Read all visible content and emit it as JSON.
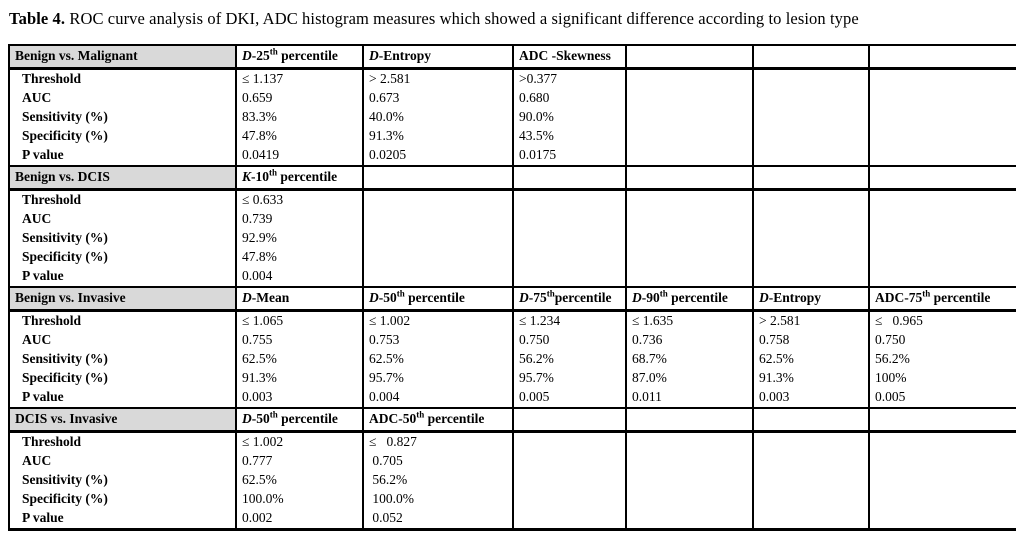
{
  "caption": {
    "bold": "Table 4.",
    "rest": " ROC curve analysis of DKI, ADC histogram measures which showed a significant difference according to lesion type"
  },
  "colors": {
    "section_label_fill": "#d9d9d9",
    "border": "#000000",
    "background": "#ffffff"
  },
  "row_labels": [
    "Threshold",
    "AUC",
    "Sensitivity (%)",
    "Specificity (%)",
    "P value"
  ],
  "sections": [
    {
      "name": "Benign vs. Malignant",
      "columns": [
        {
          "var": "D",
          "pre": "-25",
          "sup": "th",
          "tail": " percentile"
        },
        {
          "var": "D",
          "pre": "-Entropy",
          "sup": "",
          "tail": ""
        },
        {
          "var": "",
          "pre": "ADC -Skewness",
          "sup": "",
          "tail": ""
        },
        {
          "var": "",
          "pre": "",
          "sup": "",
          "tail": ""
        },
        {
          "var": "",
          "pre": "",
          "sup": "",
          "tail": ""
        },
        {
          "var": "",
          "pre": "",
          "sup": "",
          "tail": ""
        }
      ],
      "rows": [
        [
          "≤ 1.137",
          "> 2.581",
          ">0.377",
          "",
          "",
          ""
        ],
        [
          "0.659",
          "0.673",
          "0.680",
          "",
          "",
          ""
        ],
        [
          "83.3%",
          "40.0%",
          "90.0%",
          "",
          "",
          ""
        ],
        [
          "47.8%",
          "91.3%",
          "43.5%",
          "",
          "",
          ""
        ],
        [
          "0.0419",
          "0.0205",
          "0.0175",
          "",
          "",
          ""
        ]
      ]
    },
    {
      "name": "Benign vs. DCIS",
      "columns": [
        {
          "var": "K",
          "pre": "-10",
          "sup": "th",
          "tail": " percentile"
        },
        {
          "var": "",
          "pre": "",
          "sup": "",
          "tail": ""
        },
        {
          "var": "",
          "pre": "",
          "sup": "",
          "tail": ""
        },
        {
          "var": "",
          "pre": "",
          "sup": "",
          "tail": ""
        },
        {
          "var": "",
          "pre": "",
          "sup": "",
          "tail": ""
        },
        {
          "var": "",
          "pre": "",
          "sup": "",
          "tail": ""
        }
      ],
      "rows": [
        [
          "≤ 0.633",
          "",
          "",
          "",
          "",
          ""
        ],
        [
          "0.739",
          "",
          "",
          "",
          "",
          ""
        ],
        [
          "92.9%",
          "",
          "",
          "",
          "",
          ""
        ],
        [
          "47.8%",
          "",
          "",
          "",
          "",
          ""
        ],
        [
          "0.004",
          "",
          "",
          "",
          "",
          ""
        ]
      ]
    },
    {
      "name": "Benign vs. Invasive",
      "columns": [
        {
          "var": "D",
          "pre": "-Mean",
          "sup": "",
          "tail": ""
        },
        {
          "var": "D",
          "pre": "-50",
          "sup": "th",
          "tail": " percentile"
        },
        {
          "var": "D",
          "pre": "-75",
          "sup": "th",
          "tail": "percentile"
        },
        {
          "var": "D",
          "pre": "-90",
          "sup": "th",
          "tail": " percentile"
        },
        {
          "var": "D",
          "pre": "-Entropy",
          "sup": "",
          "tail": ""
        },
        {
          "var": "",
          "pre": "ADC-75",
          "sup": "th",
          "tail": " percentile"
        }
      ],
      "rows": [
        [
          "≤ 1.065",
          "≤ 1.002",
          "≤ 1.234",
          "≤ 1.635",
          "> 2.581",
          "≤   0.965"
        ],
        [
          "0.755",
          "0.753",
          "0.750",
          "0.736",
          "0.758",
          "0.750"
        ],
        [
          "62.5%",
          "62.5%",
          "56.2%",
          "68.7%",
          "62.5%",
          "56.2%"
        ],
        [
          "91.3%",
          "95.7%",
          "95.7%",
          "87.0%",
          "91.3%",
          "100%"
        ],
        [
          "0.003",
          "0.004",
          "0.005",
          "0.011",
          "0.003",
          "0.005"
        ]
      ]
    },
    {
      "name": "DCIS vs. Invasive",
      "columns": [
        {
          "var": "D",
          "pre": "-50",
          "sup": "th",
          "tail": " percentile"
        },
        {
          "var": "",
          "pre": "ADC-50",
          "sup": "th",
          "tail": " percentile"
        },
        {
          "var": "",
          "pre": "",
          "sup": "",
          "tail": ""
        },
        {
          "var": "",
          "pre": "",
          "sup": "",
          "tail": ""
        },
        {
          "var": "",
          "pre": "",
          "sup": "",
          "tail": ""
        },
        {
          "var": "",
          "pre": "",
          "sup": "",
          "tail": ""
        }
      ],
      "rows": [
        [
          "≤ 1.002",
          "≤   0.827",
          "",
          "",
          "",
          ""
        ],
        [
          "0.777",
          " 0.705",
          "",
          "",
          "",
          ""
        ],
        [
          "62.5%",
          " 56.2%",
          "",
          "",
          "",
          ""
        ],
        [
          "100.0%",
          " 100.0%",
          "",
          "",
          "",
          ""
        ],
        [
          "0.002",
          " 0.052",
          "",
          "",
          "",
          ""
        ]
      ]
    }
  ]
}
